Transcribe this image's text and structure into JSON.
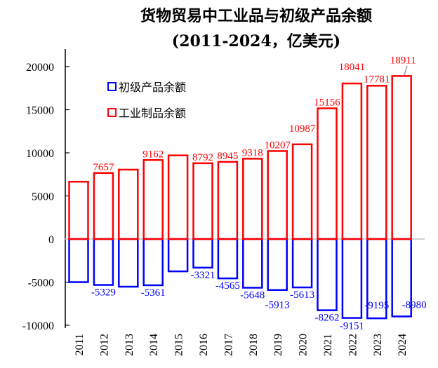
{
  "chart_data": {
    "type": "bar",
    "title": "货物贸易中工业品与初级产品余额",
    "subtitle": "(2011-2024，亿美元)",
    "xlabel": "",
    "ylabel": "",
    "ylim": [
      -10000,
      20000
    ],
    "yticks": [
      "20000",
      "15000",
      "10000",
      "5000",
      "0",
      "-5000",
      "-10000"
    ],
    "categories": [
      "2011",
      "2012",
      "2013",
      "2014",
      "2015",
      "2016",
      "2017",
      "2018",
      "2019",
      "2020",
      "2021",
      "2022",
      "2023",
      "2024"
    ],
    "series": [
      {
        "name": "初级产品余额",
        "color": "#0000ff",
        "values": [
          -5000,
          -5329,
          -5530,
          -5361,
          -3750,
          -3321,
          -4565,
          -5648,
          -5913,
          -5613,
          -8262,
          -9151,
          -9195,
          -8980
        ],
        "labels": [
          "",
          "-5329",
          "",
          "-5361",
          "",
          "-3321",
          "-4565",
          "-5648",
          "-5913",
          "-5613",
          "-8262",
          "-9151",
          "-9195",
          "-8980"
        ]
      },
      {
        "name": "工业制品余额",
        "color": "#ff0000",
        "values": [
          6650,
          7657,
          8050,
          9162,
          9700,
          8792,
          8945,
          9318,
          10207,
          10987,
          15156,
          18041,
          17781,
          18911
        ],
        "labels": [
          "",
          "7657",
          "",
          "9162",
          "",
          "8792",
          "8945",
          "9318",
          "10207",
          "10987",
          "15156",
          "18041",
          "17781",
          "18911"
        ]
      }
    ],
    "legend": "top-left",
    "grid": false
  }
}
